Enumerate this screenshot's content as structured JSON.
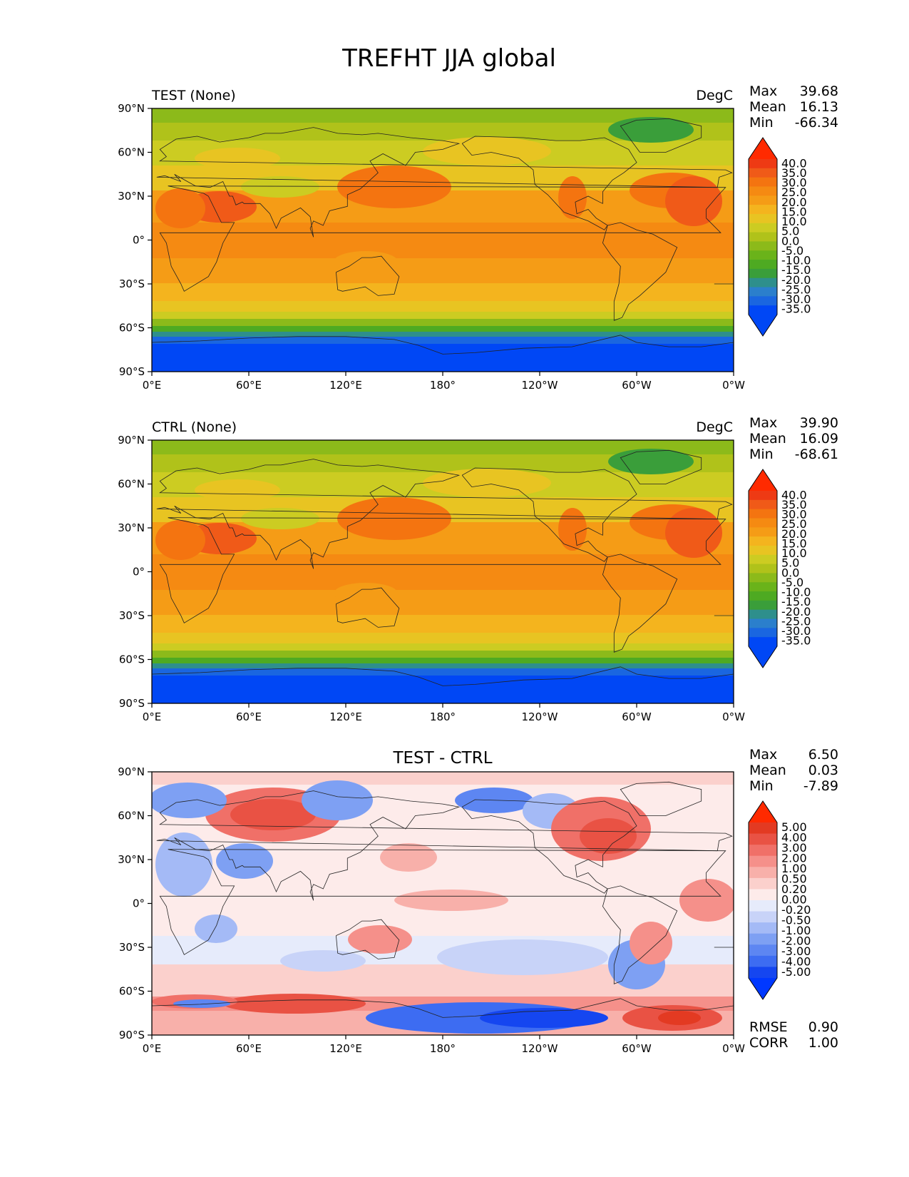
{
  "figure": {
    "title": "TREFHT JJA global"
  },
  "axes": {
    "lat_labels": [
      "90°N",
      "60°N",
      "30°N",
      "0°",
      "30°S",
      "60°S",
      "90°S"
    ],
    "lon_labels": [
      "0°E",
      "60°E",
      "120°E",
      "180°",
      "120°W",
      "60°W",
      "0°W"
    ]
  },
  "colors": {
    "temperature": [
      "#0047f5",
      "#1a66e0",
      "#2b7fcc",
      "#2e8f8c",
      "#3a9e3a",
      "#4eaa22",
      "#6ab31a",
      "#8cba1a",
      "#b0c21a",
      "#cccc22",
      "#e8c422",
      "#f4b41e",
      "#f59c16",
      "#f58a12",
      "#f47410",
      "#f05a18",
      "#ee3a14"
    ],
    "temperature_over": "#ff2a00",
    "temperature_under": "#0047f5",
    "difference": [
      "#1546f0",
      "#3d6cf2",
      "#5d86f2",
      "#7ea0f3",
      "#a4baf6",
      "#c8d3f8",
      "#e6ebfb",
      "#fdebea",
      "#fbd0cc",
      "#f8b0aa",
      "#f5908a",
      "#f07068",
      "#e95244",
      "#e33a22"
    ],
    "difference_over": "#ff2a00",
    "difference_under": "#0038ff",
    "land_outline": "#222222"
  },
  "panels": [
    {
      "title_left": "TEST (None)",
      "units": "DegC",
      "stats": {
        "max_label": "Max",
        "max": "39.68",
        "mean_label": "Mean",
        "mean": "16.13",
        "min_label": "Min",
        "min": "-66.34"
      },
      "colorbar_levels": [
        "40.0",
        "35.0",
        "30.0",
        "25.0",
        "20.0",
        "15.0",
        "10.0",
        "5.0",
        "0.0",
        "-5.0",
        "-10.0",
        "-15.0",
        "-20.0",
        "-25.0",
        "-30.0",
        "-35.0"
      ]
    },
    {
      "title_left": "CTRL (None)",
      "units": "DegC",
      "stats": {
        "max_label": "Max",
        "max": "39.90",
        "mean_label": "Mean",
        "mean": "16.09",
        "min_label": "Min",
        "min": "-68.61"
      },
      "colorbar_levels": [
        "40.0",
        "35.0",
        "30.0",
        "25.0",
        "20.0",
        "15.0",
        "10.0",
        "5.0",
        "0.0",
        "-5.0",
        "-10.0",
        "-15.0",
        "-20.0",
        "-25.0",
        "-30.0",
        "-35.0"
      ]
    },
    {
      "title_center": "TEST - CTRL",
      "stats": {
        "max_label": "Max",
        "max": "6.50",
        "mean_label": "Mean",
        "mean": "0.03",
        "min_label": "Min",
        "min": "-7.89"
      },
      "colorbar_levels": [
        "5.00",
        "4.00",
        "3.00",
        "2.00",
        "1.00",
        "0.50",
        "0.20",
        "0.00",
        "-0.20",
        "-0.50",
        "-1.00",
        "-2.00",
        "-3.00",
        "-4.00",
        "-5.00"
      ],
      "metrics": {
        "rmse_label": "RMSE",
        "rmse": "0.90",
        "corr_label": "CORR",
        "corr": "1.00"
      }
    }
  ]
}
